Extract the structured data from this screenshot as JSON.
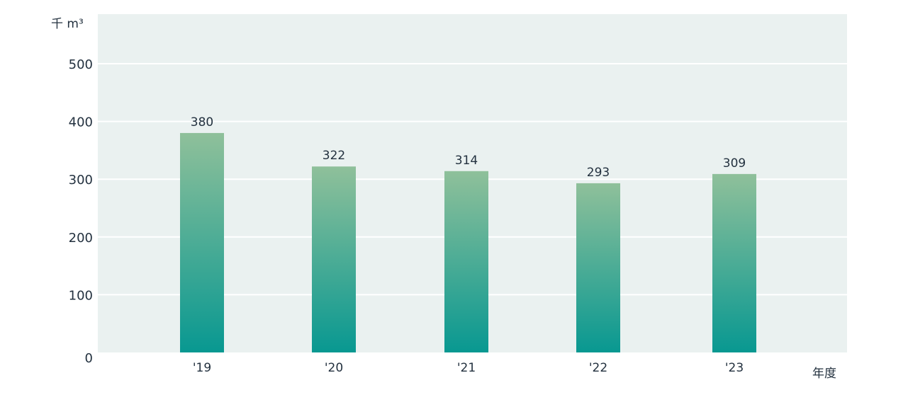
{
  "chart_data": {
    "type": "bar",
    "categories": [
      "'19",
      "'20",
      "'21",
      "'22",
      "'23"
    ],
    "values": [
      380,
      322,
      314,
      293,
      309
    ],
    "ylabel": "千 m³",
    "xlabel": "年度",
    "ylim": [
      0,
      500
    ],
    "yticks": [
      0,
      100,
      200,
      300,
      400,
      500
    ],
    "grid": true,
    "colors": {
      "bar_top": "#8fc09a",
      "bar_bottom": "#089891",
      "plot_bg": "#eaf1f0",
      "gridline": "#ffffff",
      "text": "#23313f"
    }
  }
}
